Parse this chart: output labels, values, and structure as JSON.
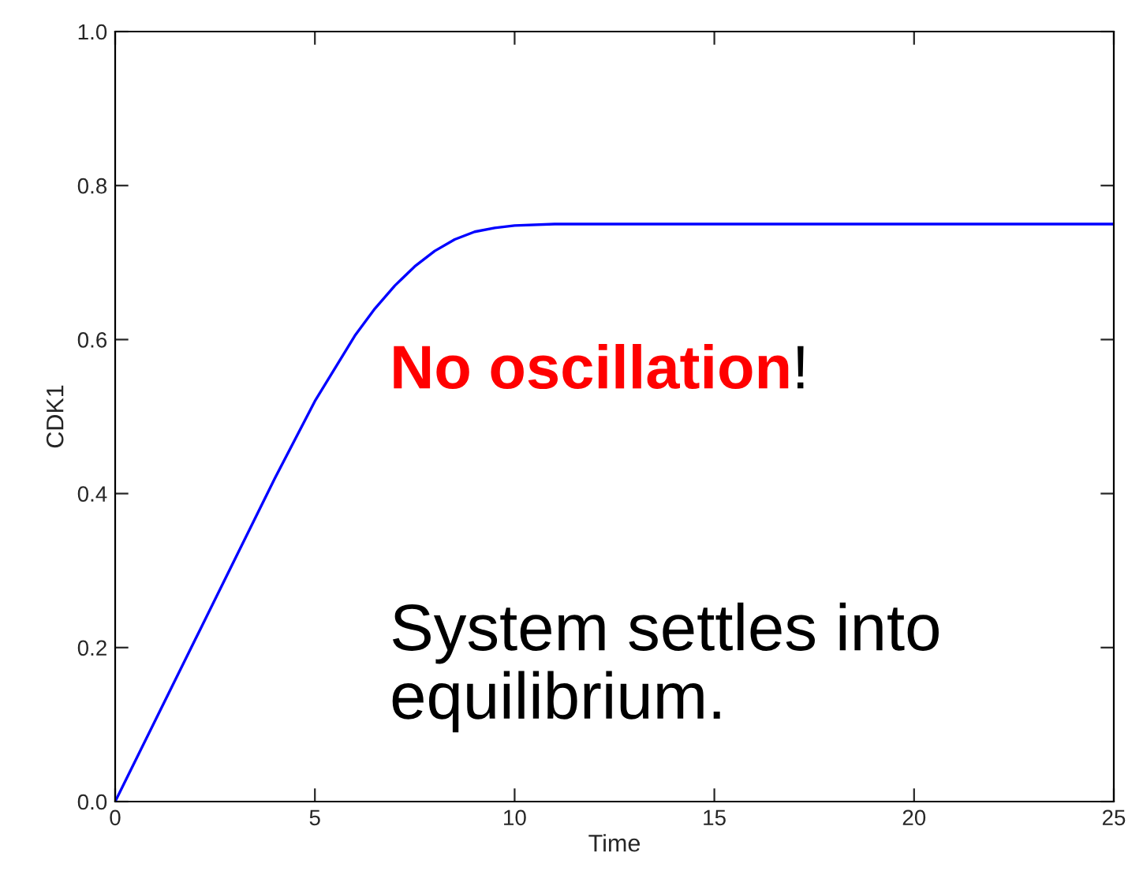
{
  "chart_data": {
    "type": "line",
    "xlabel": "Time",
    "ylabel": "CDK1",
    "x": [
      0,
      1,
      2,
      3,
      4,
      5,
      6,
      6.5,
      7,
      7.5,
      8,
      8.5,
      9,
      9.5,
      10,
      11,
      12,
      25
    ],
    "series": [
      {
        "color": "#0000ff",
        "values": [
          0,
          0.105,
          0.21,
          0.315,
          0.42,
          0.52,
          0.605,
          0.64,
          0.67,
          0.695,
          0.715,
          0.73,
          0.74,
          0.745,
          0.748,
          0.75,
          0.75,
          0.75
        ]
      }
    ],
    "xlim": [
      0,
      25
    ],
    "ylim": [
      0,
      1.0
    ],
    "xticks": [
      0,
      5,
      10,
      15,
      20,
      25
    ],
    "yticks": [
      {
        "value": 0,
        "label": "0.0"
      },
      {
        "value": 0.2,
        "label": "0.2"
      },
      {
        "value": 0.4,
        "label": "0.4"
      },
      {
        "value": 0.6,
        "label": "0.6"
      },
      {
        "value": 0.8,
        "label": "0.8"
      },
      {
        "value": 1.0,
        "label": "1.0"
      }
    ],
    "annotations": [
      "No oscillation",
      "!",
      "System settles into\nequilibrium."
    ],
    "grid": false,
    "legend": false,
    "marker": "none",
    "line_style": "solid"
  }
}
